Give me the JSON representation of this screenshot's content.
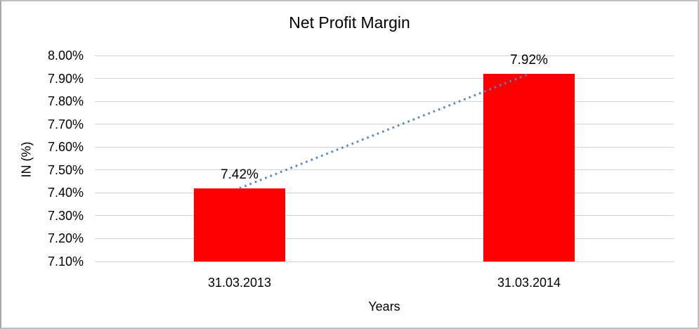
{
  "chart_data": {
    "type": "bar",
    "title": "Net Profit Margin",
    "xlabel": "Years",
    "ylabel": "IN (%)",
    "categories": [
      "31.03.2013",
      "31.03.2014"
    ],
    "values": [
      7.42,
      7.92
    ],
    "data_labels": [
      "7.42%",
      "7.92%"
    ],
    "tick_labels": [
      "8.00%",
      "7.90%",
      "7.80%",
      "7.70%",
      "7.60%",
      "7.50%",
      "7.40%",
      "7.30%",
      "7.20%",
      "7.10%"
    ],
    "tick_values": [
      8.0,
      7.9,
      7.8,
      7.7,
      7.6,
      7.5,
      7.4,
      7.3,
      7.2,
      7.1
    ],
    "ylim": [
      7.1,
      8.0
    ],
    "grid": true,
    "legend": false,
    "trendline": true,
    "colors": {
      "bar": "#ff0000",
      "trendline": "#4e86c6",
      "gridline": "#d2d2d2",
      "text": "#000000",
      "frame_border": "#c0c0c0"
    }
  }
}
